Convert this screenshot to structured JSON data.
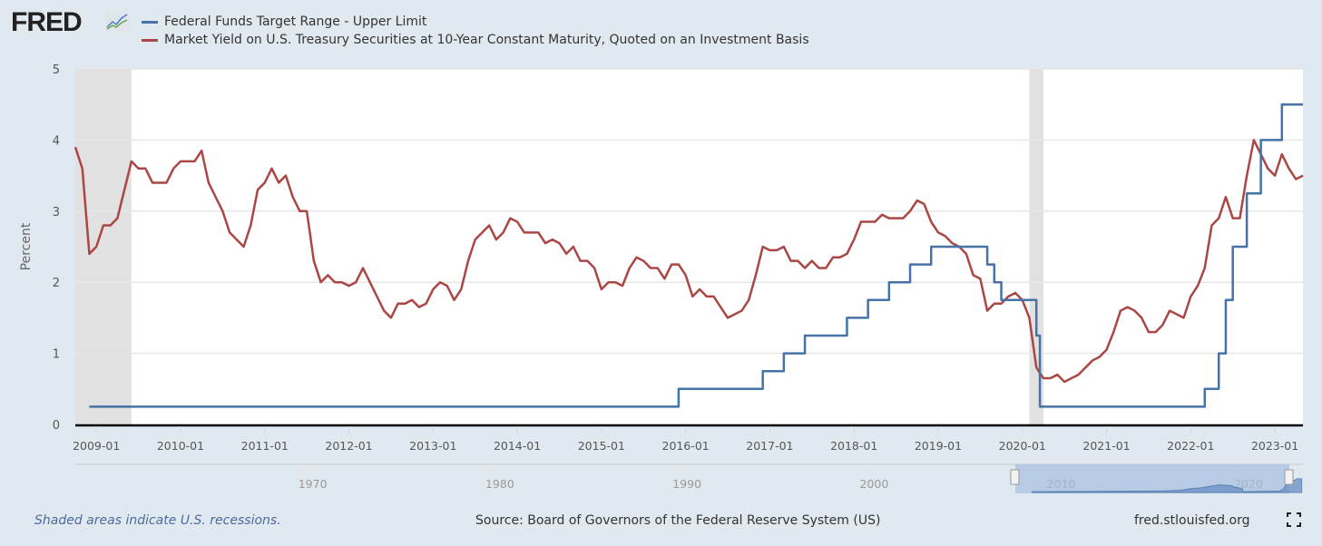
{
  "header": {
    "logo_text": "FRED",
    "logo_icon": "chart-line-icon"
  },
  "legend": [
    {
      "label": "Federal Funds Target Range - Upper Limit",
      "color": "#4572a7"
    },
    {
      "label": "Market Yield on U.S. Treasury Securities at 10-Year Constant Maturity, Quoted on an Investment Basis",
      "color": "#aa4643"
    }
  ],
  "footer": {
    "note": "Shaded areas indicate U.S. recessions.",
    "source": "Source: Board of Governors of the Federal Reserve System (US)",
    "site": "fred.stlouisfed.org",
    "fullscreen_icon": "fullscreen-icon"
  },
  "navigator": {
    "tick_labels": [
      "1970",
      "1980",
      "1990",
      "2000",
      "2010",
      "2020"
    ],
    "selected_range": [
      "2008-10",
      "2023-05"
    ]
  },
  "chart_data": {
    "type": "line",
    "title": "",
    "xlabel": "",
    "ylabel": "Percent",
    "ylim": [
      0,
      5
    ],
    "yticks": [
      0,
      1,
      2,
      3,
      4,
      5
    ],
    "xlim": [
      "2008-10",
      "2023-05"
    ],
    "xticks": [
      "2009-01",
      "2010-01",
      "2011-01",
      "2012-01",
      "2013-01",
      "2014-01",
      "2015-01",
      "2016-01",
      "2017-01",
      "2018-01",
      "2019-01",
      "2020-01",
      "2021-01",
      "2022-01",
      "2023-01"
    ],
    "grid": true,
    "legend_position": "top-left",
    "recessions": [
      [
        "2008-10",
        "2009-06"
      ],
      [
        "2020-02",
        "2020-04"
      ]
    ],
    "series": [
      {
        "name": "Federal Funds Target Range - Upper Limit",
        "color": "#4572a7",
        "step": true,
        "points": [
          [
            "2008-12",
            0.25
          ],
          [
            "2015-12",
            0.5
          ],
          [
            "2016-12",
            0.75
          ],
          [
            "2017-03",
            1.0
          ],
          [
            "2017-06",
            1.25
          ],
          [
            "2017-12",
            1.5
          ],
          [
            "2018-03",
            1.75
          ],
          [
            "2018-06",
            2.0
          ],
          [
            "2018-09",
            2.25
          ],
          [
            "2018-12",
            2.5
          ],
          [
            "2019-08",
            2.25
          ],
          [
            "2019-09",
            2.0
          ],
          [
            "2019-10",
            1.75
          ],
          [
            "2020-03",
            1.25
          ],
          [
            "2020-03.5",
            0.25
          ],
          [
            "2022-03",
            0.5
          ],
          [
            "2022-05",
            1.0
          ],
          [
            "2022-06",
            1.75
          ],
          [
            "2022-07",
            2.5
          ],
          [
            "2022-09",
            3.25
          ],
          [
            "2022-11",
            4.0
          ],
          [
            "2022-12.5",
            4.0
          ],
          [
            "2023-02",
            4.5
          ],
          [
            "2023-05",
            4.5
          ]
        ]
      },
      {
        "name": "Market Yield on U.S. Treasury Securities at 10-Year Constant Maturity, Quoted on an Investment Basis",
        "color": "#aa4643",
        "step": false,
        "points": [
          [
            "2008-10",
            3.9
          ],
          [
            "2008-11",
            3.6
          ],
          [
            "2008-12",
            2.4
          ],
          [
            "2009-01",
            2.5
          ],
          [
            "2009-02",
            2.8
          ],
          [
            "2009-03",
            2.8
          ],
          [
            "2009-04",
            2.9
          ],
          [
            "2009-05",
            3.3
          ],
          [
            "2009-06",
            3.7
          ],
          [
            "2009-07",
            3.6
          ],
          [
            "2009-08",
            3.6
          ],
          [
            "2009-09",
            3.4
          ],
          [
            "2009-10",
            3.4
          ],
          [
            "2009-11",
            3.4
          ],
          [
            "2009-12",
            3.6
          ],
          [
            "2010-01",
            3.7
          ],
          [
            "2010-02",
            3.7
          ],
          [
            "2010-03",
            3.7
          ],
          [
            "2010-04",
            3.85
          ],
          [
            "2010-05",
            3.4
          ],
          [
            "2010-06",
            3.2
          ],
          [
            "2010-07",
            3.0
          ],
          [
            "2010-08",
            2.7
          ],
          [
            "2010-09",
            2.6
          ],
          [
            "2010-10",
            2.5
          ],
          [
            "2010-11",
            2.8
          ],
          [
            "2010-12",
            3.3
          ],
          [
            "2011-01",
            3.4
          ],
          [
            "2011-02",
            3.6
          ],
          [
            "2011-03",
            3.4
          ],
          [
            "2011-04",
            3.5
          ],
          [
            "2011-05",
            3.2
          ],
          [
            "2011-06",
            3.0
          ],
          [
            "2011-07",
            3.0
          ],
          [
            "2011-08",
            2.3
          ],
          [
            "2011-09",
            2.0
          ],
          [
            "2011-10",
            2.1
          ],
          [
            "2011-11",
            2.0
          ],
          [
            "2011-12",
            2.0
          ],
          [
            "2012-01",
            1.95
          ],
          [
            "2012-02",
            2.0
          ],
          [
            "2012-03",
            2.2
          ],
          [
            "2012-04",
            2.0
          ],
          [
            "2012-05",
            1.8
          ],
          [
            "2012-06",
            1.6
          ],
          [
            "2012-07",
            1.5
          ],
          [
            "2012-08",
            1.7
          ],
          [
            "2012-09",
            1.7
          ],
          [
            "2012-10",
            1.75
          ],
          [
            "2012-11",
            1.65
          ],
          [
            "2012-12",
            1.7
          ],
          [
            "2013-01",
            1.9
          ],
          [
            "2013-02",
            2.0
          ],
          [
            "2013-03",
            1.95
          ],
          [
            "2013-04",
            1.75
          ],
          [
            "2013-05",
            1.9
          ],
          [
            "2013-06",
            2.3
          ],
          [
            "2013-07",
            2.6
          ],
          [
            "2013-08",
            2.7
          ],
          [
            "2013-09",
            2.8
          ],
          [
            "2013-10",
            2.6
          ],
          [
            "2013-11",
            2.7
          ],
          [
            "2013-12",
            2.9
          ],
          [
            "2014-01",
            2.85
          ],
          [
            "2014-02",
            2.7
          ],
          [
            "2014-03",
            2.7
          ],
          [
            "2014-04",
            2.7
          ],
          [
            "2014-05",
            2.55
          ],
          [
            "2014-06",
            2.6
          ],
          [
            "2014-07",
            2.55
          ],
          [
            "2014-08",
            2.4
          ],
          [
            "2014-09",
            2.5
          ],
          [
            "2014-10",
            2.3
          ],
          [
            "2014-11",
            2.3
          ],
          [
            "2014-12",
            2.2
          ],
          [
            "2015-01",
            1.9
          ],
          [
            "2015-02",
            2.0
          ],
          [
            "2015-03",
            2.0
          ],
          [
            "2015-04",
            1.95
          ],
          [
            "2015-05",
            2.2
          ],
          [
            "2015-06",
            2.35
          ],
          [
            "2015-07",
            2.3
          ],
          [
            "2015-08",
            2.2
          ],
          [
            "2015-09",
            2.2
          ],
          [
            "2015-10",
            2.05
          ],
          [
            "2015-11",
            2.25
          ],
          [
            "2015-12",
            2.25
          ],
          [
            "2016-01",
            2.1
          ],
          [
            "2016-02",
            1.8
          ],
          [
            "2016-03",
            1.9
          ],
          [
            "2016-04",
            1.8
          ],
          [
            "2016-05",
            1.8
          ],
          [
            "2016-06",
            1.65
          ],
          [
            "2016-07",
            1.5
          ],
          [
            "2016-08",
            1.55
          ],
          [
            "2016-09",
            1.6
          ],
          [
            "2016-10",
            1.75
          ],
          [
            "2016-11",
            2.1
          ],
          [
            "2016-12",
            2.5
          ],
          [
            "2017-01",
            2.45
          ],
          [
            "2017-02",
            2.45
          ],
          [
            "2017-03",
            2.5
          ],
          [
            "2017-04",
            2.3
          ],
          [
            "2017-05",
            2.3
          ],
          [
            "2017-06",
            2.2
          ],
          [
            "2017-07",
            2.3
          ],
          [
            "2017-08",
            2.2
          ],
          [
            "2017-09",
            2.2
          ],
          [
            "2017-10",
            2.35
          ],
          [
            "2017-11",
            2.35
          ],
          [
            "2017-12",
            2.4
          ],
          [
            "2018-01",
            2.6
          ],
          [
            "2018-02",
            2.85
          ],
          [
            "2018-03",
            2.85
          ],
          [
            "2018-04",
            2.85
          ],
          [
            "2018-05",
            2.95
          ],
          [
            "2018-06",
            2.9
          ],
          [
            "2018-07",
            2.9
          ],
          [
            "2018-08",
            2.9
          ],
          [
            "2018-09",
            3.0
          ],
          [
            "2018-10",
            3.15
          ],
          [
            "2018-11",
            3.1
          ],
          [
            "2018-12",
            2.85
          ],
          [
            "2019-01",
            2.7
          ],
          [
            "2019-02",
            2.65
          ],
          [
            "2019-03",
            2.55
          ],
          [
            "2019-04",
            2.5
          ],
          [
            "2019-05",
            2.4
          ],
          [
            "2019-06",
            2.1
          ],
          [
            "2019-07",
            2.05
          ],
          [
            "2019-08",
            1.6
          ],
          [
            "2019-09",
            1.7
          ],
          [
            "2019-10",
            1.7
          ],
          [
            "2019-11",
            1.8
          ],
          [
            "2019-12",
            1.85
          ],
          [
            "2020-01",
            1.75
          ],
          [
            "2020-02",
            1.5
          ],
          [
            "2020-03",
            0.8
          ],
          [
            "2020-04",
            0.65
          ],
          [
            "2020-05",
            0.65
          ],
          [
            "2020-06",
            0.7
          ],
          [
            "2020-07",
            0.6
          ],
          [
            "2020-08",
            0.65
          ],
          [
            "2020-09",
            0.7
          ],
          [
            "2020-10",
            0.8
          ],
          [
            "2020-11",
            0.9
          ],
          [
            "2020-12",
            0.95
          ],
          [
            "2021-01",
            1.05
          ],
          [
            "2021-02",
            1.3
          ],
          [
            "2021-03",
            1.6
          ],
          [
            "2021-04",
            1.65
          ],
          [
            "2021-05",
            1.6
          ],
          [
            "2021-06",
            1.5
          ],
          [
            "2021-07",
            1.3
          ],
          [
            "2021-08",
            1.3
          ],
          [
            "2021-09",
            1.4
          ],
          [
            "2021-10",
            1.6
          ],
          [
            "2021-11",
            1.55
          ],
          [
            "2021-12",
            1.5
          ],
          [
            "2022-01",
            1.8
          ],
          [
            "2022-02",
            1.95
          ],
          [
            "2022-03",
            2.2
          ],
          [
            "2022-04",
            2.8
          ],
          [
            "2022-05",
            2.9
          ],
          [
            "2022-06",
            3.2
          ],
          [
            "2022-07",
            2.9
          ],
          [
            "2022-08",
            2.9
          ],
          [
            "2022-09",
            3.5
          ],
          [
            "2022-10",
            4.0
          ],
          [
            "2022-11",
            3.8
          ],
          [
            "2022-12",
            3.6
          ],
          [
            "2023-01",
            3.5
          ],
          [
            "2023-02",
            3.8
          ],
          [
            "2023-03",
            3.6
          ],
          [
            "2023-04",
            3.45
          ],
          [
            "2023-05",
            3.5
          ]
        ]
      }
    ]
  }
}
